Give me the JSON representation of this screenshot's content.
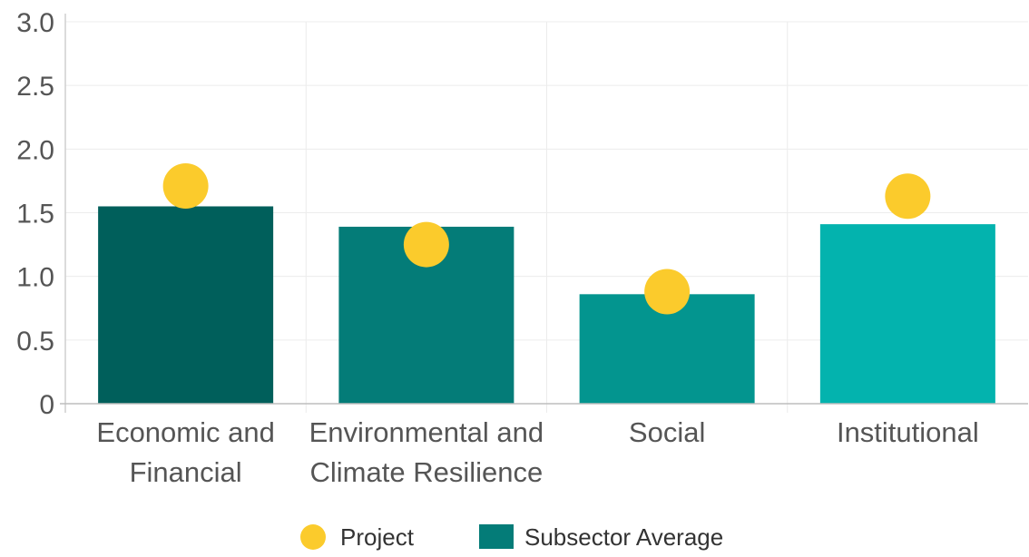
{
  "chart_data": {
    "type": "bar",
    "categories": [
      [
        "Economic and",
        "Financial"
      ],
      [
        "Environmental and",
        "Climate Resilience"
      ],
      [
        "Social"
      ],
      [
        "Institutional"
      ]
    ],
    "series": [
      {
        "name": "Subsector Average",
        "kind": "bar",
        "values": [
          1.55,
          1.39,
          0.86,
          1.41
        ],
        "colors": [
          "#005f5b",
          "#047c78",
          "#03958f",
          "#03b3ae"
        ]
      },
      {
        "name": "Project",
        "kind": "point",
        "values": [
          1.71,
          1.25,
          0.88,
          1.63
        ],
        "color": "#fbcb2c"
      }
    ],
    "ylim": [
      0,
      3.0
    ],
    "yticks": [
      "0",
      "0.5",
      "1.0",
      "1.5",
      "2.0",
      "2.5",
      "3.0"
    ],
    "ytick_values": [
      0,
      0.5,
      1.0,
      1.5,
      2.0,
      2.5,
      3.0
    ],
    "grid": true,
    "legend": {
      "placement": "bottom-center",
      "entries": [
        {
          "label": "Project",
          "symbol": "circle",
          "color": "#fbcb2c"
        },
        {
          "label": "Subsector Average",
          "symbol": "square",
          "color": "#047c78"
        }
      ]
    },
    "title": "",
    "xlabel": "",
    "ylabel": ""
  }
}
